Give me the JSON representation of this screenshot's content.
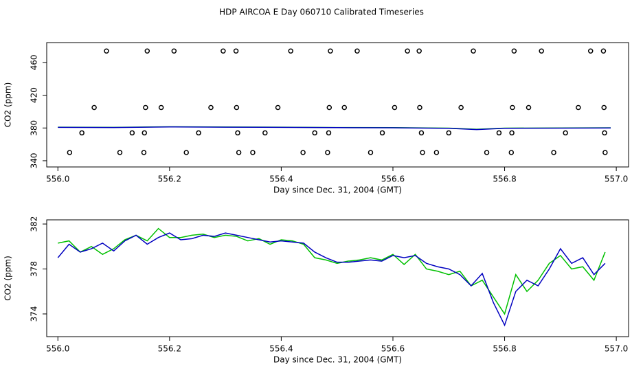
{
  "chart_data": [
    {
      "type": "scatter",
      "title": "HDP AIRCOA E  Day 060710  Calibrated Timeseries",
      "xlabel": "Day since Dec. 31, 2004 (GMT)",
      "ylabel": "CO2 (ppm)",
      "xlim": [
        555.98,
        557.022
      ],
      "ylim": [
        332.4,
        484.3
      ],
      "xticks": [
        {
          "value": 556.0,
          "label": "556.0"
        },
        {
          "value": 556.2,
          "label": "556.2"
        },
        {
          "value": 556.4,
          "label": "556.4"
        },
        {
          "value": 556.6,
          "label": "556.6"
        },
        {
          "value": 556.8,
          "label": "556.8"
        },
        {
          "value": 557.0,
          "label": "557.0"
        }
      ],
      "yticks": [
        340,
        380,
        420,
        460
      ],
      "series": [
        {
          "style": "points",
          "color": "#000000",
          "x": [
            556.087,
            556.16,
            556.208,
            556.296,
            556.319,
            556.417,
            556.488,
            556.536,
            556.626,
            556.647,
            556.744,
            556.817,
            556.866,
            556.954,
            556.977,
            556.065,
            556.157,
            556.185,
            556.274,
            556.32,
            556.394,
            556.486,
            556.513,
            556.603,
            556.648,
            556.722,
            556.814,
            556.843,
            556.932,
            556.978,
            556.043,
            556.133,
            556.155,
            556.252,
            556.322,
            556.371,
            556.46,
            556.485,
            556.581,
            556.651,
            556.7,
            556.79,
            556.813,
            556.909,
            556.979,
            556.021,
            556.111,
            556.154,
            556.23,
            556.324,
            556.349,
            556.439,
            556.483,
            556.56,
            556.653,
            556.678,
            556.768,
            556.812,
            556.888,
            556.98
          ],
          "values": [
            474,
            474,
            474,
            474,
            474,
            474,
            474,
            474,
            474,
            474,
            474,
            474,
            474,
            474,
            474,
            405,
            405,
            405,
            405,
            405,
            405,
            405,
            405,
            405,
            405,
            405,
            405,
            405,
            405,
            405,
            374,
            374,
            374,
            374,
            374,
            374,
            374,
            374,
            374,
            374,
            374,
            374,
            374,
            374,
            374,
            350,
            350,
            350,
            350,
            350,
            350,
            350,
            350,
            350,
            350,
            350,
            350,
            350,
            350,
            350
          ]
        },
        {
          "style": "line",
          "color": "#00c000",
          "x": [
            556.0,
            556.1,
            556.2,
            556.3,
            556.4,
            556.5,
            556.6,
            556.7,
            556.75,
            556.8,
            556.9,
            556.99
          ],
          "values": [
            381,
            380.8,
            381.5,
            381.2,
            381,
            380.6,
            380.4,
            379.8,
            378.5,
            379.8,
            380,
            380.2
          ]
        },
        {
          "style": "line",
          "color": "#0000c0",
          "x": [
            556.0,
            556.1,
            556.2,
            556.3,
            556.4,
            556.5,
            556.6,
            556.7,
            556.75,
            556.8,
            556.9,
            556.99
          ],
          "values": [
            380.8,
            380.6,
            381.3,
            381,
            380.8,
            380.4,
            380.2,
            379.6,
            378,
            379.6,
            379.8,
            380
          ]
        }
      ]
    },
    {
      "type": "line",
      "xlabel": "Day since Dec. 31, 2004 (GMT)",
      "ylabel": "CO2 (ppm)",
      "xlim": [
        555.98,
        557.022
      ],
      "ylim": [
        371.98,
        382.37
      ],
      "xticks": [
        {
          "value": 556.0,
          "label": "556.0"
        },
        {
          "value": 556.2,
          "label": "556.2"
        },
        {
          "value": 556.4,
          "label": "556.4"
        },
        {
          "value": 556.6,
          "label": "556.6"
        },
        {
          "value": 556.8,
          "label": "556.8"
        },
        {
          "value": 557.0,
          "label": "557.0"
        }
      ],
      "yticks": [
        374,
        378,
        382
      ],
      "x": [
        556.0,
        556.02,
        556.04,
        556.06,
        556.08,
        556.1,
        556.12,
        556.14,
        556.16,
        556.18,
        556.2,
        556.22,
        556.24,
        556.26,
        556.28,
        556.3,
        556.32,
        556.34,
        556.36,
        556.38,
        556.4,
        556.42,
        556.44,
        556.46,
        556.48,
        556.5,
        556.52,
        556.54,
        556.56,
        556.58,
        556.6,
        556.62,
        556.64,
        556.66,
        556.68,
        556.7,
        556.72,
        556.74,
        556.76,
        556.78,
        556.8,
        556.82,
        556.84,
        556.86,
        556.88,
        556.9,
        556.92,
        556.94,
        556.96,
        556.98
      ],
      "series": [
        {
          "color": "#00c000",
          "values": [
            380.3,
            380.5,
            379.5,
            380.0,
            379.3,
            379.8,
            380.6,
            381.0,
            380.5,
            381.6,
            380.8,
            380.8,
            381.0,
            381.1,
            380.8,
            381.0,
            380.9,
            380.5,
            380.7,
            380.2,
            380.6,
            380.5,
            380.2,
            379.0,
            378.8,
            378.5,
            378.7,
            378.8,
            379.0,
            378.8,
            379.3,
            378.4,
            379.3,
            378.0,
            377.8,
            377.5,
            377.8,
            376.5,
            377.0,
            375.5,
            374.0,
            377.5,
            376.0,
            377.0,
            378.5,
            379.2,
            378.0,
            378.2,
            377.0,
            379.5
          ]
        },
        {
          "color": "#0000c0",
          "values": [
            379.0,
            380.2,
            379.5,
            379.8,
            380.3,
            379.6,
            380.5,
            381.0,
            380.2,
            380.8,
            381.2,
            380.6,
            380.7,
            381.0,
            380.9,
            381.2,
            381.0,
            380.8,
            380.6,
            380.4,
            380.5,
            380.4,
            380.3,
            379.5,
            379.0,
            378.6,
            378.6,
            378.7,
            378.8,
            378.7,
            379.2,
            379.0,
            379.2,
            378.5,
            378.2,
            378.0,
            377.5,
            376.5,
            377.6,
            375.0,
            373.0,
            376.0,
            377.0,
            376.5,
            378.0,
            379.8,
            378.5,
            379.0,
            377.5,
            378.5
          ]
        }
      ]
    }
  ]
}
